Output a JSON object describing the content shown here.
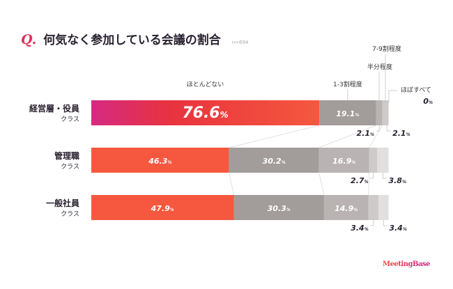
{
  "title": {
    "prefix": "Q.",
    "text": "何気なく参加している会議の割合",
    "sample": "n=694"
  },
  "chart_data": {
    "type": "stacked-bar-horizontal",
    "categories": [
      {
        "line1": "経営層・役員",
        "line2": "クラス"
      },
      {
        "line1": "管理職",
        "line2": "クラス"
      },
      {
        "line1": "一般社員",
        "line2": "クラス"
      }
    ],
    "series": [
      {
        "name": "ほとんどない",
        "values": [
          76.6,
          46.3,
          47.9
        ]
      },
      {
        "name": "1-3割程度",
        "values": [
          19.1,
          30.2,
          30.3
        ]
      },
      {
        "name": "半分程度",
        "values": [
          2.1,
          16.9,
          14.9
        ]
      },
      {
        "name": "7-9割程度",
        "values": [
          2.1,
          2.7,
          3.4
        ]
      },
      {
        "name": "ほぼすべて",
        "values": [
          0,
          3.8,
          3.4
        ]
      }
    ],
    "unit": "%",
    "xlim": [
      0,
      100
    ],
    "colors": {
      "highlight_gradient": [
        "#d42a82",
        "#e8333e",
        "#f5583f"
      ],
      "first_segment": "#f5583f",
      "grays": [
        "#a29c9b",
        "#b9b3b3",
        "#cfcaca",
        "#e1dfdf"
      ]
    }
  },
  "logo": "MeetingBase"
}
